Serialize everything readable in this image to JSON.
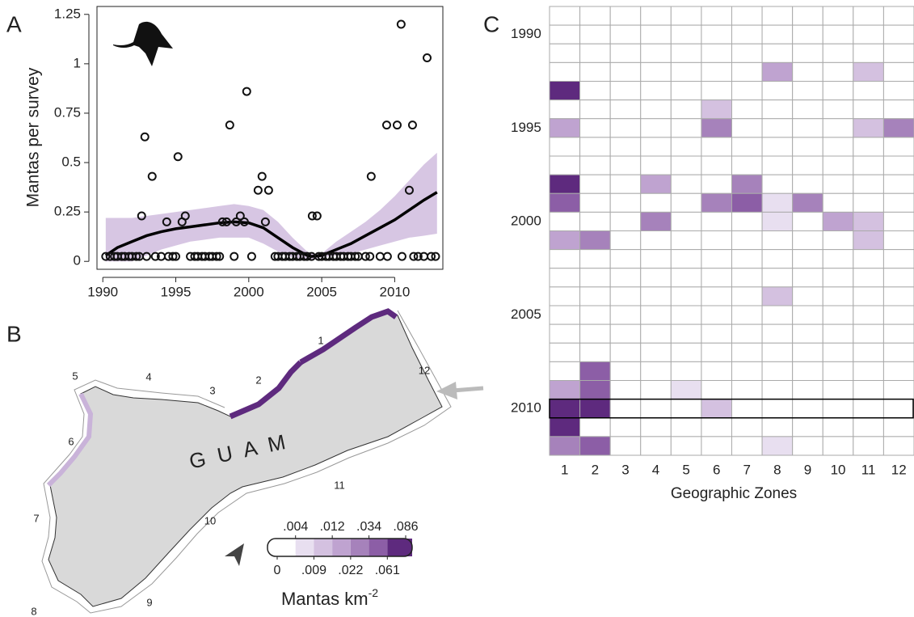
{
  "chart_data": [
    {
      "type": "scatter",
      "panel_label": "A",
      "ylabel": "Mantas per survey",
      "xlim": [
        1989.6,
        2013.3
      ],
      "ylim": [
        -0.04,
        1.29
      ],
      "xticks": [
        1990,
        1995,
        2000,
        2005,
        2010
      ],
      "yticks": [
        0,
        0.25,
        0.5,
        0.75,
        1,
        1.25
      ],
      "points": {
        "x": [
          1992.66,
          1992.88,
          1993.38,
          1994.38,
          1995.15,
          1995.43,
          1995.65,
          1998.2,
          1998.48,
          1998.7,
          1999.14,
          1999.42,
          1999.7,
          1999.86,
          2000.64,
          2000.91,
          2001.14,
          2001.36,
          2004.35,
          2004.68,
          2008.39,
          2009.45,
          2010.17,
          2010.44,
          2011.0,
          2011.22,
          2012.22,
          1990.2,
          1990.5,
          1990.8,
          1991.0,
          1991.3,
          1991.5,
          1991.8,
          1992.0,
          1992.3,
          1992.5,
          1993.0,
          1993.6,
          1994.0,
          1994.5,
          1994.8,
          1995.0,
          1996.0,
          1996.3,
          1996.5,
          1996.8,
          1997.0,
          1997.3,
          1997.5,
          1997.8,
          1998.0,
          1999.0,
          2000.2,
          2001.8,
          2002.0,
          2002.3,
          2002.5,
          2002.8,
          2003.0,
          2003.3,
          2003.5,
          2003.8,
          2004.0,
          2004.3,
          2004.8,
          2005.0,
          2005.3,
          2005.5,
          2005.8,
          2006.0,
          2006.3,
          2006.5,
          2006.8,
          2007.0,
          2007.3,
          2007.5,
          2008.0,
          2008.3,
          2009.0,
          2009.5,
          2010.5,
          2011.3,
          2011.6,
          2012.0,
          2012.5,
          2012.8
        ],
        "values": [
          0.23,
          0.63,
          0.43,
          0.2,
          0.53,
          0.2,
          0.23,
          0.2,
          0.2,
          0.69,
          0.2,
          0.23,
          0.2,
          0.86,
          0.36,
          0.43,
          0.2,
          0.36,
          0.23,
          0.23,
          0.43,
          0.69,
          0.69,
          1.2,
          0.36,
          0.69,
          1.03,
          0.025,
          0.025,
          0.025,
          0.025,
          0.025,
          0.025,
          0.025,
          0.025,
          0.025,
          0.025,
          0.025,
          0.025,
          0.025,
          0.025,
          0.025,
          0.025,
          0.025,
          0.025,
          0.025,
          0.025,
          0.025,
          0.025,
          0.025,
          0.025,
          0.025,
          0.025,
          0.025,
          0.025,
          0.025,
          0.025,
          0.025,
          0.025,
          0.025,
          0.025,
          0.025,
          0.025,
          0.025,
          0.025,
          0.025,
          0.025,
          0.025,
          0.025,
          0.025,
          0.025,
          0.025,
          0.025,
          0.025,
          0.025,
          0.025,
          0.025,
          0.025,
          0.025,
          0.025,
          0.025,
          0.025,
          0.025,
          0.025,
          0.025,
          0.025,
          0.025
        ]
      },
      "fit": {
        "color": "#000000",
        "band_color": "#c9b3d9",
        "x": [
          1990.2,
          1991,
          1992,
          1993,
          1994,
          1995,
          1996,
          1997,
          1998,
          1999,
          2000,
          2001,
          2002,
          2003,
          2004,
          2004.3,
          2005,
          2006,
          2007,
          2008,
          2009,
          2010,
          2011,
          2012,
          2012.9
        ],
        "values": [
          0.03,
          0.07,
          0.1,
          0.13,
          0.15,
          0.165,
          0.175,
          0.185,
          0.195,
          0.2,
          0.195,
          0.17,
          0.12,
          0.07,
          0.03,
          0.025,
          0.03,
          0.06,
          0.09,
          0.13,
          0.17,
          0.21,
          0.26,
          0.31,
          0.35
        ],
        "upper": [
          0.22,
          0.22,
          0.22,
          0.23,
          0.24,
          0.25,
          0.26,
          0.27,
          0.28,
          0.29,
          0.28,
          0.26,
          0.2,
          0.12,
          0.05,
          0.04,
          0.04,
          0.1,
          0.15,
          0.2,
          0.26,
          0.33,
          0.41,
          0.49,
          0.55
        ],
        "lower": [
          0,
          0,
          0,
          0.03,
          0.06,
          0.08,
          0.1,
          0.11,
          0.12,
          0.12,
          0.12,
          0.09,
          0.05,
          0.02,
          0.01,
          0.01,
          0.02,
          0.03,
          0.04,
          0.06,
          0.08,
          0.1,
          0.12,
          0.13,
          0.14
        ]
      }
    },
    {
      "type": "map",
      "panel_label": "B",
      "name": "G U A M",
      "zone_labels": [
        1,
        2,
        3,
        4,
        5,
        6,
        7,
        8,
        9,
        10,
        11,
        12
      ],
      "legend_title": "Mantas km",
      "legend_exponent": "-2",
      "colorbar": {
        "ticks": [
          0,
          {
            "value": 0.004,
            "label": ".004"
          },
          {
            "value": 0.009,
            "label": ".009"
          },
          {
            "value": 0.012,
            "label": ".012"
          },
          {
            "value": 0.022,
            "label": ".022"
          },
          {
            "value": 0.034,
            "label": ".034"
          },
          {
            "value": 0.061,
            "label": ".061"
          },
          {
            "value": 0.086,
            "label": ".086"
          }
        ],
        "colors": [
          "#ffffff",
          "#e8dff0",
          "#d4c1e0",
          "#bfa3d0",
          "#a682bb",
          "#8c5ea6",
          "#5e2a7e"
        ]
      }
    },
    {
      "type": "heatmap",
      "panel_label": "C",
      "xlabel": "Geographic Zones",
      "x_categories": [
        1,
        2,
        3,
        4,
        5,
        6,
        7,
        8,
        9,
        10,
        11,
        12
      ],
      "y_categories": [
        null,
        1990,
        null,
        null,
        null,
        null,
        1995,
        null,
        null,
        null,
        null,
        2000,
        null,
        null,
        null,
        null,
        2005,
        null,
        null,
        null,
        null,
        2010,
        null,
        null
      ],
      "highlight": 2010,
      "values": [
        [
          0,
          0,
          0,
          0,
          0,
          0,
          0,
          0,
          0,
          0,
          0,
          0
        ],
        [
          0,
          0,
          0,
          0,
          0,
          0,
          0,
          0,
          0,
          0,
          0,
          0
        ],
        [
          0,
          0,
          0,
          0,
          0,
          0,
          0,
          0,
          0,
          0,
          0,
          0
        ],
        [
          0,
          0,
          0,
          0,
          0,
          0,
          0,
          0.015,
          0,
          0,
          0.01,
          0
        ],
        [
          0.07,
          0,
          0,
          0,
          0,
          0,
          0,
          0,
          0,
          0,
          0,
          0
        ],
        [
          0,
          0,
          0,
          0,
          0,
          0.01,
          0,
          0,
          0,
          0,
          0,
          0
        ],
        [
          0.015,
          0,
          0,
          0,
          0,
          0.028,
          0,
          0,
          0,
          0,
          0.01,
          0.028
        ],
        [
          0,
          0,
          0,
          0,
          0,
          0,
          0,
          0,
          0,
          0,
          0,
          0
        ],
        [
          0,
          0,
          0,
          0,
          0,
          0,
          0,
          0,
          0,
          0,
          0,
          0
        ],
        [
          0.07,
          0,
          0,
          0.015,
          0,
          0,
          0.028,
          0,
          0,
          0,
          0,
          0
        ],
        [
          0.045,
          0,
          0,
          0,
          0,
          0.028,
          0.045,
          0.006,
          0.028,
          0,
          0,
          0
        ],
        [
          0,
          0,
          0,
          0.028,
          0,
          0,
          0,
          0.006,
          0,
          0.015,
          0.01,
          0
        ],
        [
          0.015,
          0.028,
          0,
          0,
          0,
          0,
          0,
          0,
          0,
          0,
          0.01,
          0
        ],
        [
          0,
          0,
          0,
          0,
          0,
          0,
          0,
          0,
          0,
          0,
          0,
          0
        ],
        [
          0,
          0,
          0,
          0,
          0,
          0,
          0,
          0,
          0,
          0,
          0,
          0
        ],
        [
          0,
          0,
          0,
          0,
          0,
          0,
          0,
          0.01,
          0,
          0,
          0,
          0
        ],
        [
          0,
          0,
          0,
          0,
          0,
          0,
          0,
          0,
          0,
          0,
          0,
          0
        ],
        [
          0,
          0,
          0,
          0,
          0,
          0,
          0,
          0,
          0,
          0,
          0,
          0
        ],
        [
          0,
          0,
          0,
          0,
          0,
          0,
          0,
          0,
          0,
          0,
          0,
          0
        ],
        [
          0,
          0.045,
          0,
          0,
          0,
          0,
          0,
          0,
          0,
          0,
          0,
          0
        ],
        [
          0.015,
          0.045,
          0,
          0,
          0.006,
          0,
          0,
          0,
          0,
          0,
          0,
          0
        ],
        [
          0.085,
          0.085,
          0,
          0,
          0,
          0.01,
          0,
          0,
          0,
          0,
          0,
          0
        ],
        [
          0.07,
          0,
          0,
          0,
          0,
          0,
          0,
          0,
          0,
          0,
          0,
          0
        ],
        [
          0.028,
          0.045,
          0,
          0,
          0,
          0,
          0,
          0.006,
          0,
          0,
          0,
          0
        ]
      ]
    }
  ]
}
